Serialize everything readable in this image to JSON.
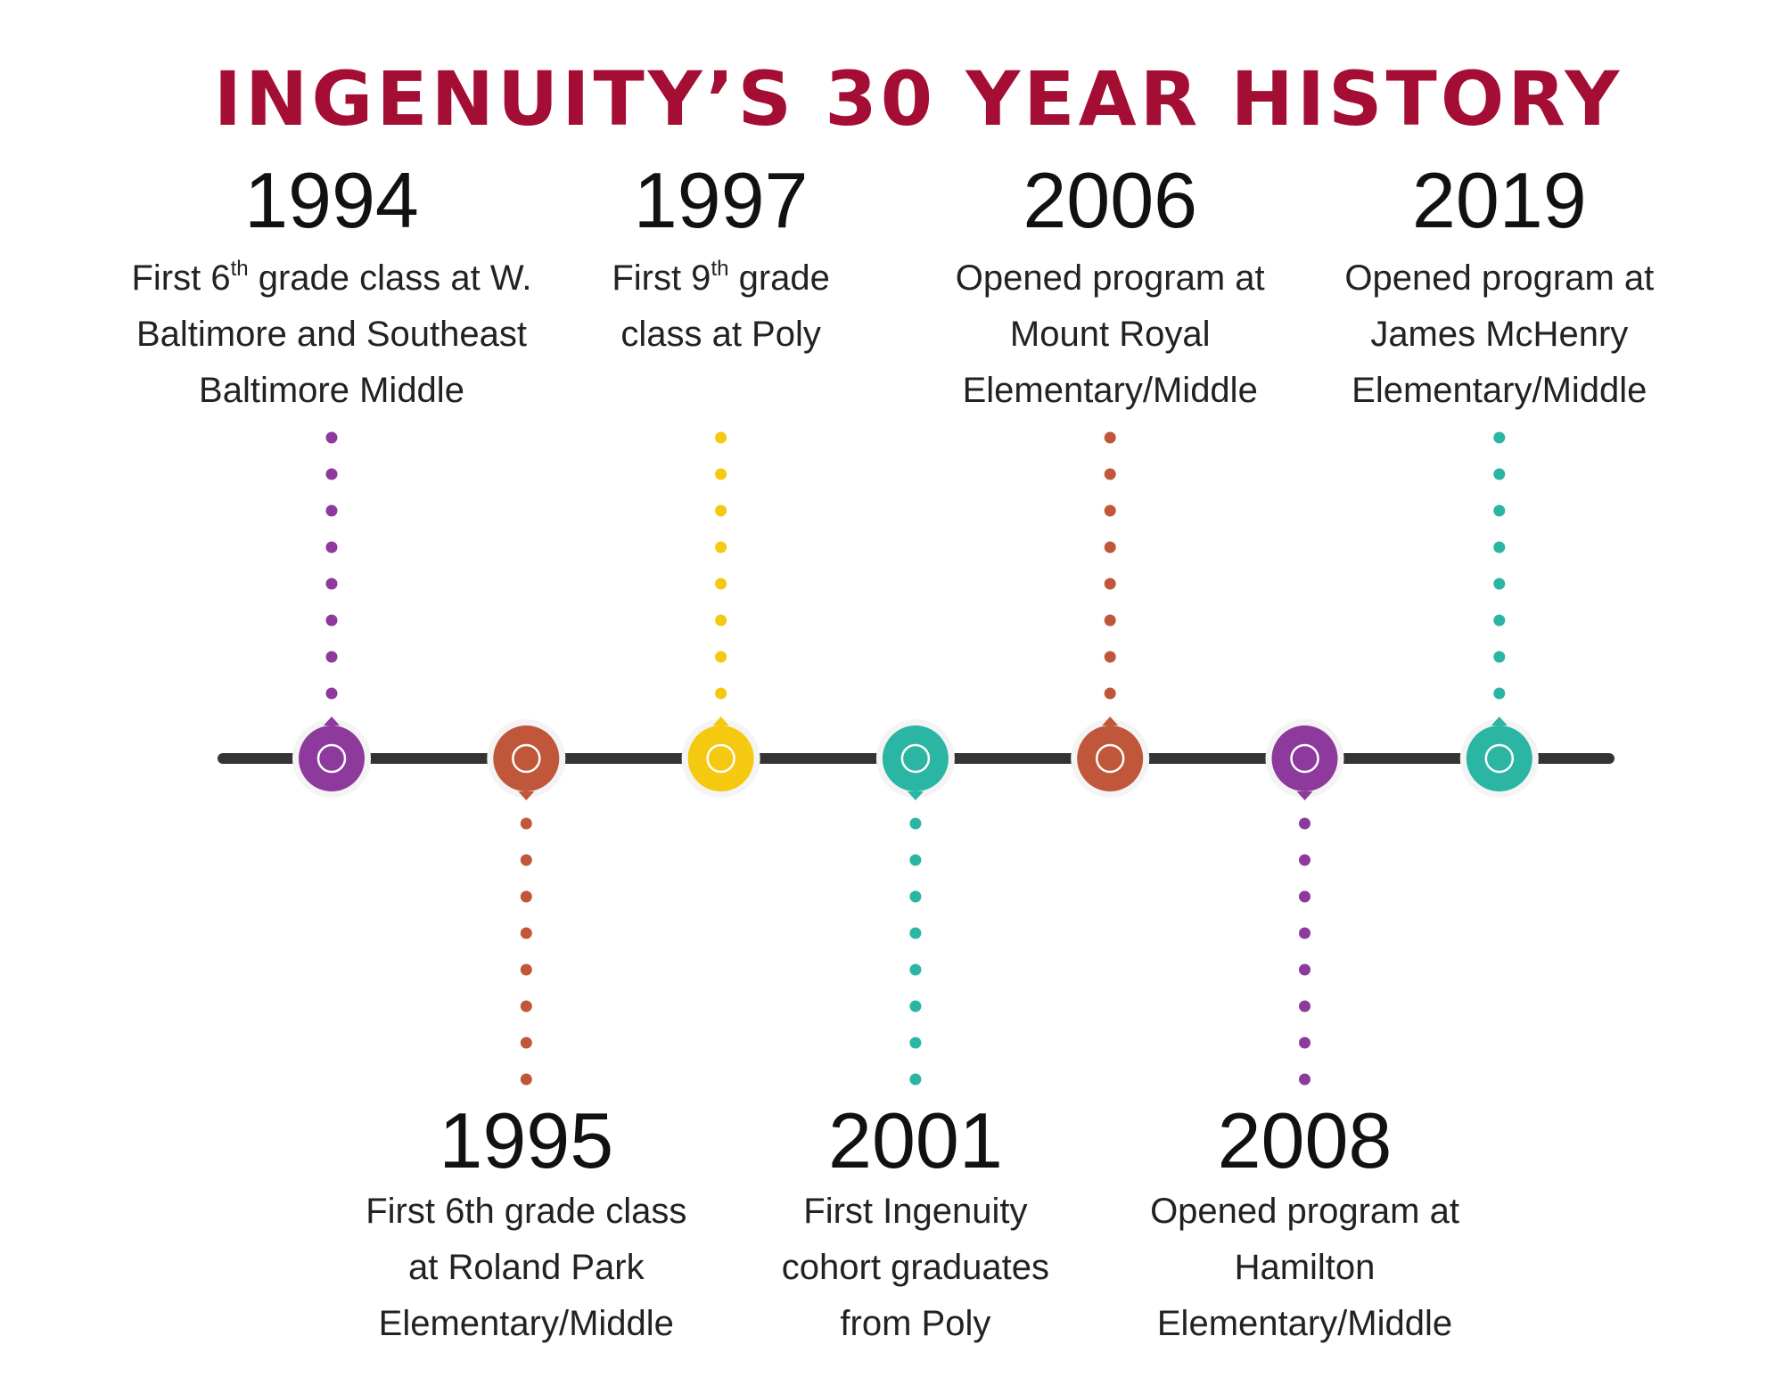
{
  "title": "INGENUITY’S 30 YEAR HISTORY",
  "events": [
    {
      "year": "1994",
      "position": "top",
      "color": "#8e3a9d",
      "lines": [
        [
          "First 6",
          "th",
          " grade class at W."
        ],
        "Baltimore and Southeast",
        "Baltimore Middle"
      ]
    },
    {
      "year": "1995",
      "position": "bottom",
      "color": "#c0573a",
      "lines": [
        "First 6th grade class",
        "at Roland Park",
        "Elementary/Middle"
      ]
    },
    {
      "year": "1997",
      "position": "top",
      "color": "#f5c90f",
      "lines": [
        [
          "First 9",
          "th",
          " grade"
        ],
        "class at Poly"
      ]
    },
    {
      "year": "2001",
      "position": "bottom",
      "color": "#2bb5a3",
      "lines": [
        "First Ingenuity",
        "cohort graduates",
        "from Poly"
      ]
    },
    {
      "year": "2006",
      "position": "top",
      "color": "#c0573a",
      "lines": [
        "Opened program at",
        "Mount Royal",
        "Elementary/Middle"
      ]
    },
    {
      "year": "2008",
      "position": "bottom",
      "color": "#8e3a9d",
      "lines": [
        "Opened program at",
        "Hamilton",
        "Elementary/Middle"
      ]
    },
    {
      "year": "2019",
      "position": "top",
      "color": "#2bb5a3",
      "lines": [
        "Opened program at",
        "James McHenry",
        "Elementary/Middle"
      ]
    }
  ]
}
